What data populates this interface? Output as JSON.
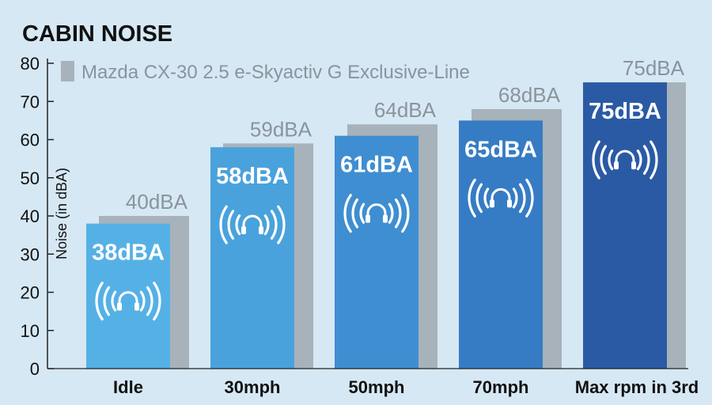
{
  "chart_data": {
    "type": "bar",
    "title": "CABIN NOISE",
    "ylabel": "Noise (in dBA)",
    "ylim": [
      0,
      80
    ],
    "yticks": [
      0,
      10,
      20,
      30,
      40,
      50,
      60,
      70,
      80
    ],
    "categories": [
      "Idle",
      "30mph",
      "50mph",
      "70mph",
      "Max rpm in 3rd"
    ],
    "legend_position": "top-left",
    "grid": false,
    "series": [
      {
        "name": "",
        "values": [
          38,
          58,
          61,
          65,
          75
        ],
        "labels": [
          "38dBA",
          "58dBA",
          "61dBA",
          "65dBA",
          "75dBA"
        ],
        "colors": [
          "#55b1e5",
          "#4aa2dc",
          "#3f8ed1",
          "#367cc4",
          "#2b5aa5"
        ],
        "icon": "headphones-sound-icon"
      },
      {
        "name": "Mazda CX-30 2.5 e-Skyactiv G Exclusive-Line",
        "values": [
          40,
          59,
          64,
          68,
          75
        ],
        "labels": [
          "40dBA",
          "59dBA",
          "64dBA",
          "68dBA",
          "75dBA"
        ],
        "color": "#a8b2ba"
      }
    ]
  },
  "colors": {
    "background": "#d6e8f4",
    "text": "#111111",
    "comparison_label": "#8a949c",
    "axis": "#222222"
  }
}
